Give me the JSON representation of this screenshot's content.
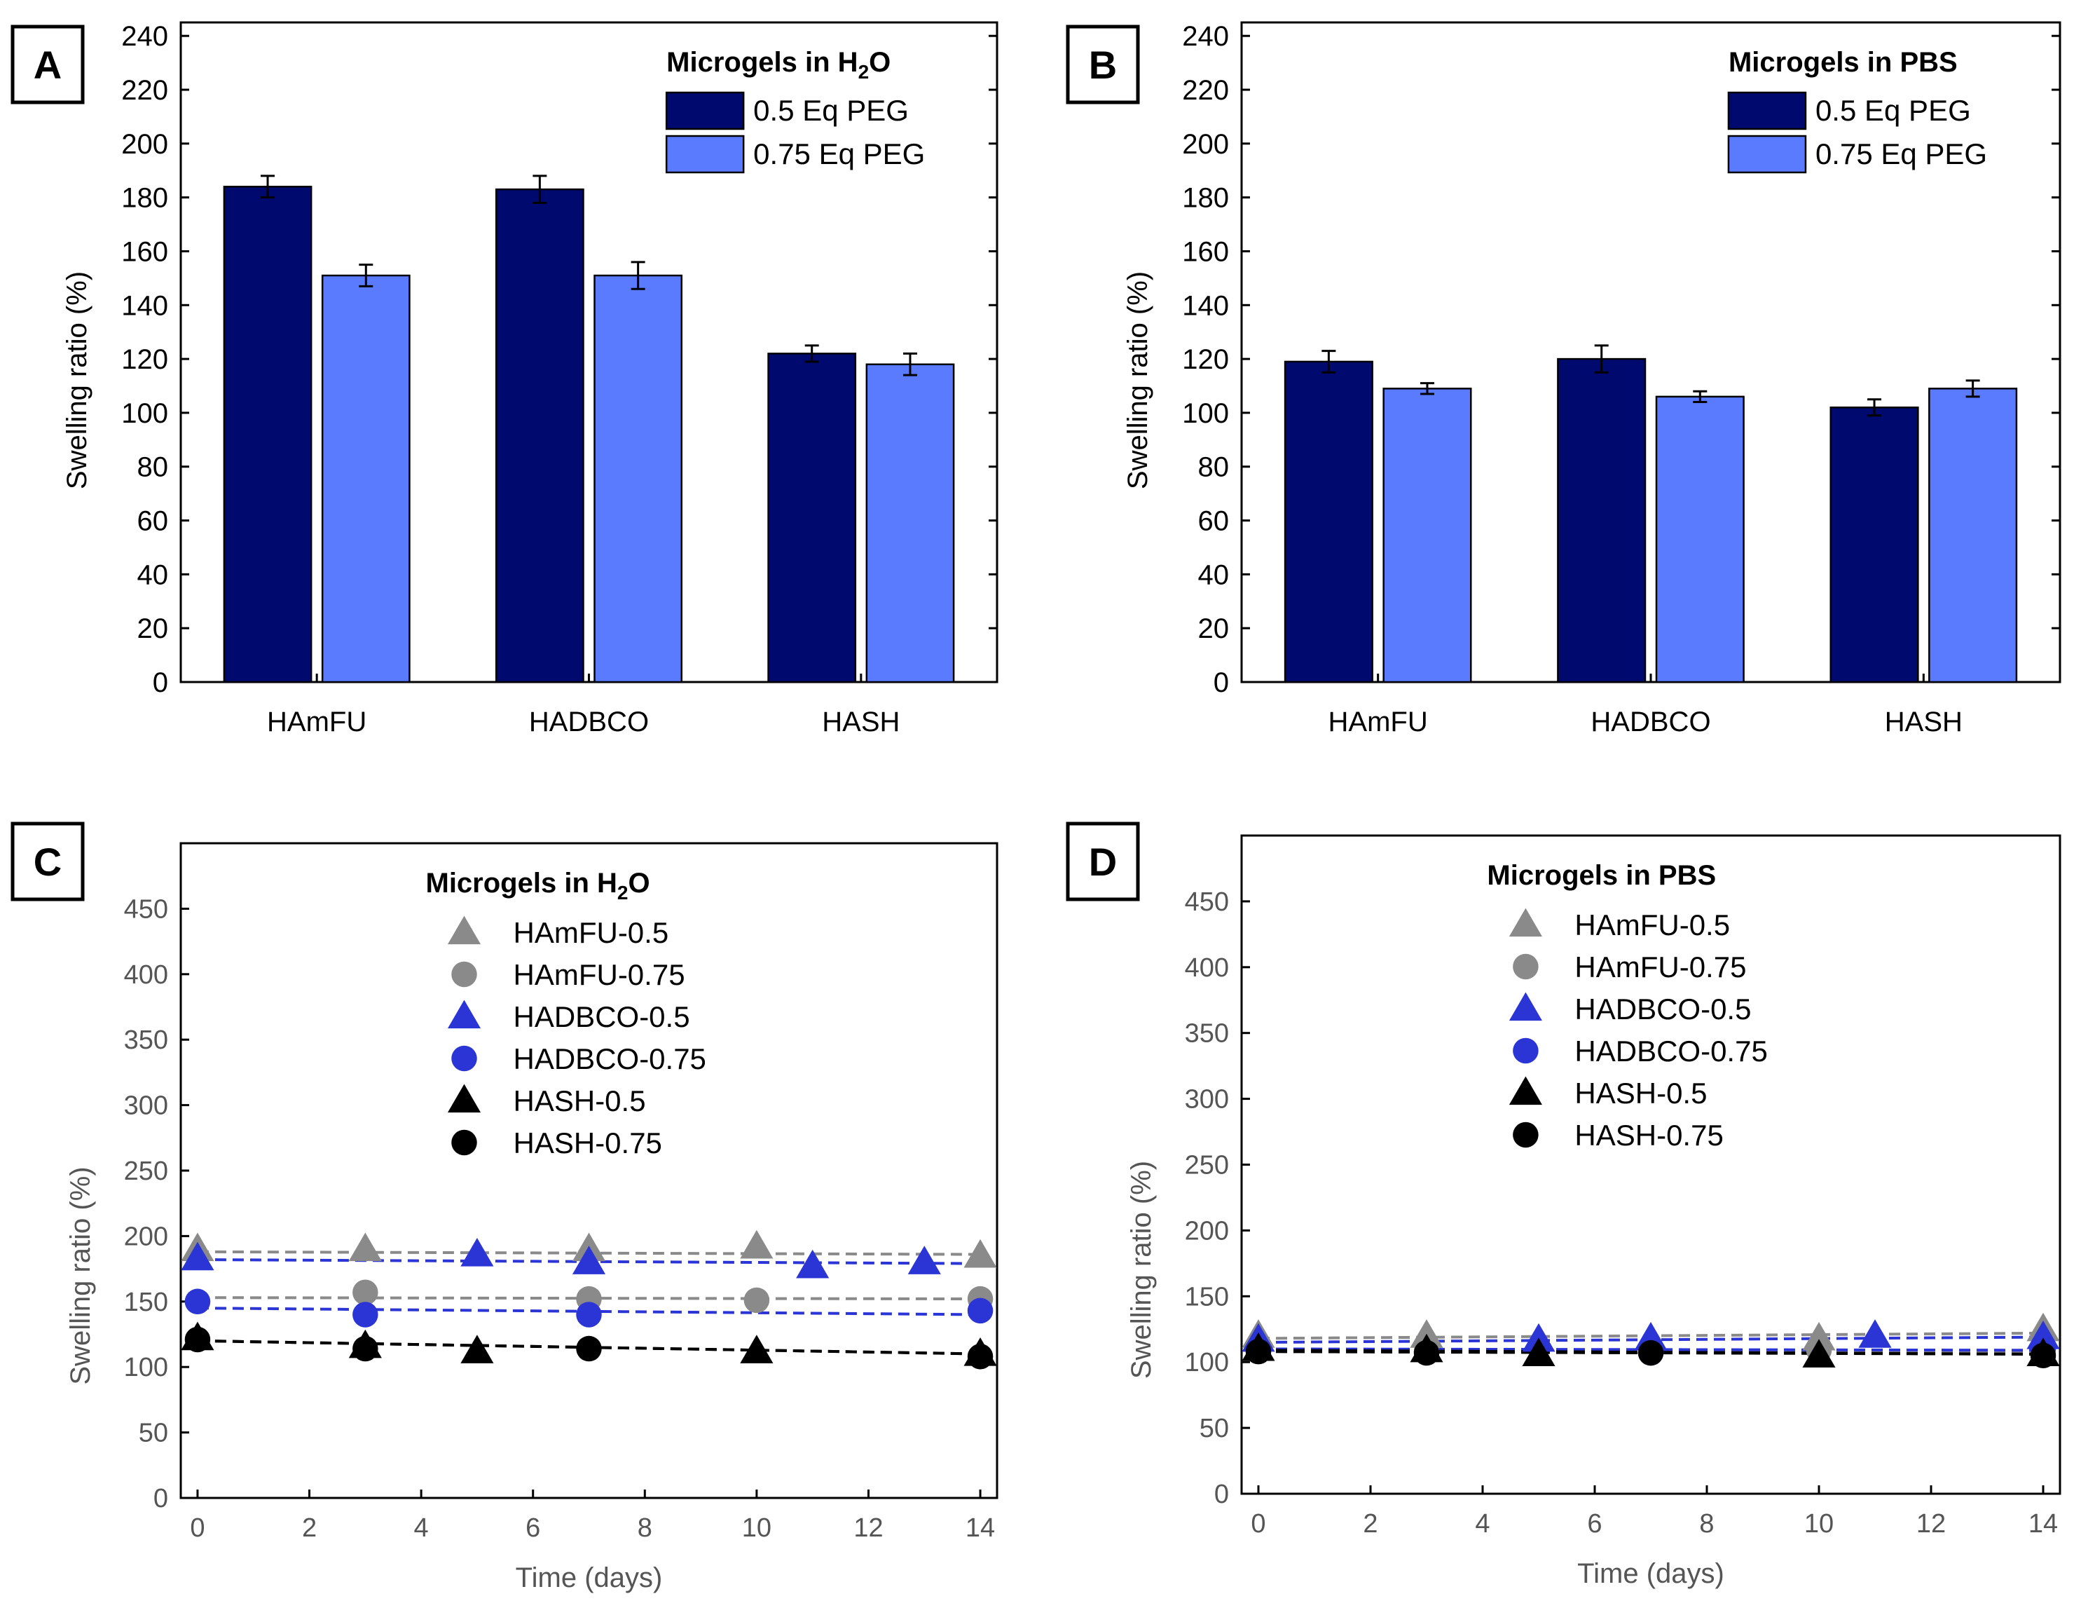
{
  "figure": {
    "panels": [
      {
        "letter": "A"
      },
      {
        "letter": "B"
      },
      {
        "letter": "C"
      },
      {
        "letter": "D"
      }
    ]
  },
  "chart_data": [
    {
      "type": "bar",
      "panel": "A",
      "legend_title_main": "Microgels in H",
      "legend_title_sub": "2",
      "legend_title_tail": "O",
      "categories": [
        "HAmFU",
        "HADBCO",
        "HASH"
      ],
      "series": [
        {
          "name": "0.5 Eq PEG",
          "color": "#000a6e",
          "values": [
            184,
            183,
            122
          ],
          "errors": [
            4,
            5,
            3
          ]
        },
        {
          "name": "0.75 Eq PEG",
          "color": "#5b7bff",
          "values": [
            151,
            151,
            118
          ],
          "errors": [
            4,
            5,
            4
          ]
        }
      ],
      "ylabel": "Swelling ratio (%)",
      "ylim": [
        0,
        245
      ],
      "yticks": [
        0,
        20,
        40,
        60,
        80,
        100,
        120,
        140,
        160,
        180,
        200,
        220,
        240
      ]
    },
    {
      "type": "bar",
      "panel": "B",
      "legend_title_main": "Microgels in PBS",
      "legend_title_sub": "",
      "legend_title_tail": "",
      "categories": [
        "HAmFU",
        "HADBCO",
        "HASH"
      ],
      "series": [
        {
          "name": "0.5 Eq PEG",
          "color": "#000a6e",
          "values": [
            119,
            120,
            102
          ],
          "errors": [
            4,
            5,
            3
          ]
        },
        {
          "name": "0.75 Eq PEG",
          "color": "#5b7bff",
          "values": [
            109,
            106,
            109
          ],
          "errors": [
            2,
            2,
            3
          ]
        }
      ],
      "ylabel": "Swelling ratio (%)",
      "ylim": [
        0,
        245
      ],
      "yticks": [
        0,
        20,
        40,
        60,
        80,
        100,
        120,
        140,
        160,
        180,
        200,
        220,
        240
      ]
    },
    {
      "type": "scatter",
      "panel": "C",
      "legend_title_main": "Microgels in H",
      "legend_title_sub": "2",
      "legend_title_tail": "O",
      "xlabel": "Time (days)",
      "ylabel": "Swelling ratio (%)",
      "xlim": [
        -0.3,
        14.3
      ],
      "ylim": [
        0,
        500
      ],
      "xticks": [
        0,
        2,
        4,
        6,
        8,
        10,
        12,
        14
      ],
      "yticks": [
        0,
        50,
        100,
        150,
        200,
        250,
        300,
        350,
        400,
        450
      ],
      "series": [
        {
          "name": "HAmFU-0.5",
          "marker": "triangle",
          "color": "#8a8a8a",
          "x": [
            0,
            3,
            7,
            10,
            14
          ],
          "y": [
            190,
            190,
            190,
            192,
            185
          ],
          "fit": [
            188,
            186
          ]
        },
        {
          "name": "HAmFU-0.75",
          "marker": "circle",
          "color": "#8a8a8a",
          "x": [
            0,
            3,
            7,
            10,
            14
          ],
          "y": [
            150,
            157,
            152,
            151,
            152
          ],
          "fit": [
            153,
            152
          ]
        },
        {
          "name": "HADBCO-0.5",
          "marker": "triangle",
          "color": "#2b35d6",
          "x": [
            0,
            5,
            7,
            11,
            13
          ],
          "y": [
            183,
            186,
            180,
            177,
            180
          ],
          "fit": [
            182,
            179
          ]
        },
        {
          "name": "HADBCO-0.75",
          "marker": "circle",
          "color": "#2b35d6",
          "x": [
            0,
            3,
            7,
            14
          ],
          "y": [
            150,
            140,
            140,
            143
          ],
          "fit": [
            145,
            140
          ]
        },
        {
          "name": "HASH-0.5",
          "marker": "triangle",
          "color": "#000000",
          "x": [
            0,
            3,
            5,
            10,
            14
          ],
          "y": [
            122,
            116,
            112,
            112,
            110
          ],
          "fit": [
            120,
            110
          ]
        },
        {
          "name": "HASH-0.75",
          "marker": "circle",
          "color": "#000000",
          "x": [
            0,
            3,
            7,
            14
          ],
          "y": [
            121,
            114,
            114,
            108
          ],
          "fit": [
            120,
            110
          ]
        }
      ]
    },
    {
      "type": "scatter",
      "panel": "D",
      "legend_title_main": "Microgels in PBS",
      "legend_title_sub": "",
      "legend_title_tail": "",
      "xlabel": "Time (days)",
      "ylabel": "Swelling ratio (%)",
      "xlim": [
        -0.3,
        14.3
      ],
      "ylim": [
        0,
        500
      ],
      "xticks": [
        0,
        2,
        4,
        6,
        8,
        10,
        12,
        14
      ],
      "yticks": [
        0,
        50,
        100,
        150,
        200,
        250,
        300,
        350,
        400,
        450
      ],
      "series": [
        {
          "name": "HAmFU-0.5",
          "marker": "triangle",
          "color": "#8a8a8a",
          "x": [
            0,
            3,
            10,
            14
          ],
          "y": [
            120,
            120,
            118,
            125
          ],
          "fit": [
            118,
            122
          ]
        },
        {
          "name": "HAmFU-0.75",
          "marker": "circle",
          "color": "#8a8a8a",
          "x": [
            0,
            3,
            7,
            10,
            14
          ],
          "y": [
            110,
            108,
            107,
            109,
            110
          ],
          "fit": [
            109,
            108
          ]
        },
        {
          "name": "HADBCO-0.5",
          "marker": "triangle",
          "color": "#2b35d6",
          "x": [
            0,
            5,
            7,
            11,
            14
          ],
          "y": [
            117,
            117,
            118,
            120,
            119
          ],
          "fit": [
            115,
            119
          ]
        },
        {
          "name": "HADBCO-0.75",
          "marker": "circle",
          "color": "#2b35d6",
          "x": [
            0,
            7,
            14
          ],
          "y": [
            110,
            107,
            110
          ],
          "fit": [
            110,
            109
          ]
        },
        {
          "name": "HASH-0.5",
          "marker": "triangle",
          "color": "#000000",
          "x": [
            0,
            3,
            5,
            10,
            14
          ],
          "y": [
            110,
            109,
            106,
            105,
            106
          ],
          "fit": [
            109,
            106
          ]
        },
        {
          "name": "HASH-0.75",
          "marker": "circle",
          "color": "#000000",
          "x": [
            0,
            3,
            7,
            14
          ],
          "y": [
            108,
            107,
            107,
            105
          ],
          "fit": [
            108,
            106
          ]
        }
      ]
    }
  ]
}
